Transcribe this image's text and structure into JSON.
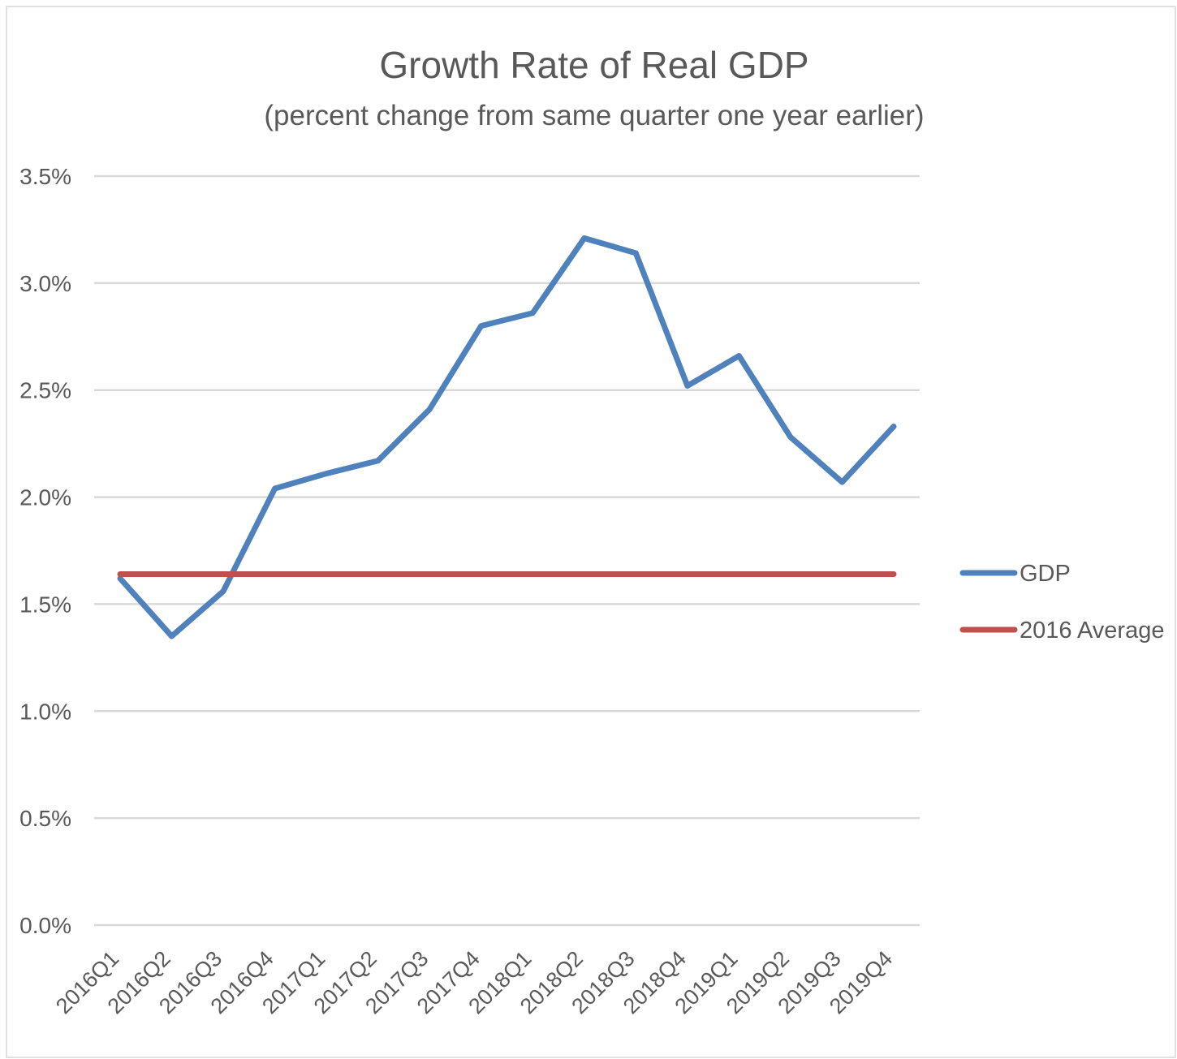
{
  "chart_data": {
    "type": "line",
    "title": "Growth Rate of Real GDP",
    "subtitle": "(percent change from same quarter one year earlier)",
    "categories": [
      "2016Q1",
      "2016Q2",
      "2016Q3",
      "2016Q4",
      "2017Q1",
      "2017Q2",
      "2017Q3",
      "2017Q4",
      "2018Q1",
      "2018Q2",
      "2018Q3",
      "2018Q4",
      "2019Q1",
      "2019Q2",
      "2019Q3",
      "2019Q4"
    ],
    "series": [
      {
        "name": "GDP",
        "color": "#4f81bd",
        "values": [
          1.62,
          1.35,
          1.56,
          2.04,
          2.11,
          2.17,
          2.41,
          2.8,
          2.86,
          3.21,
          3.14,
          2.52,
          2.66,
          2.28,
          2.07,
          2.33
        ]
      },
      {
        "name": "2016 Average",
        "color": "#c0504d",
        "values": [
          1.64,
          1.64,
          1.64,
          1.64,
          1.64,
          1.64,
          1.64,
          1.64,
          1.64,
          1.64,
          1.64,
          1.64,
          1.64,
          1.64,
          1.64,
          1.64
        ]
      }
    ],
    "yticks": [
      "0.0%",
      "0.5%",
      "1.0%",
      "1.5%",
      "2.0%",
      "2.5%",
      "3.0%",
      "3.5%"
    ],
    "ylim": [
      0,
      3.5
    ],
    "grid": true,
    "legend_position": "right"
  }
}
